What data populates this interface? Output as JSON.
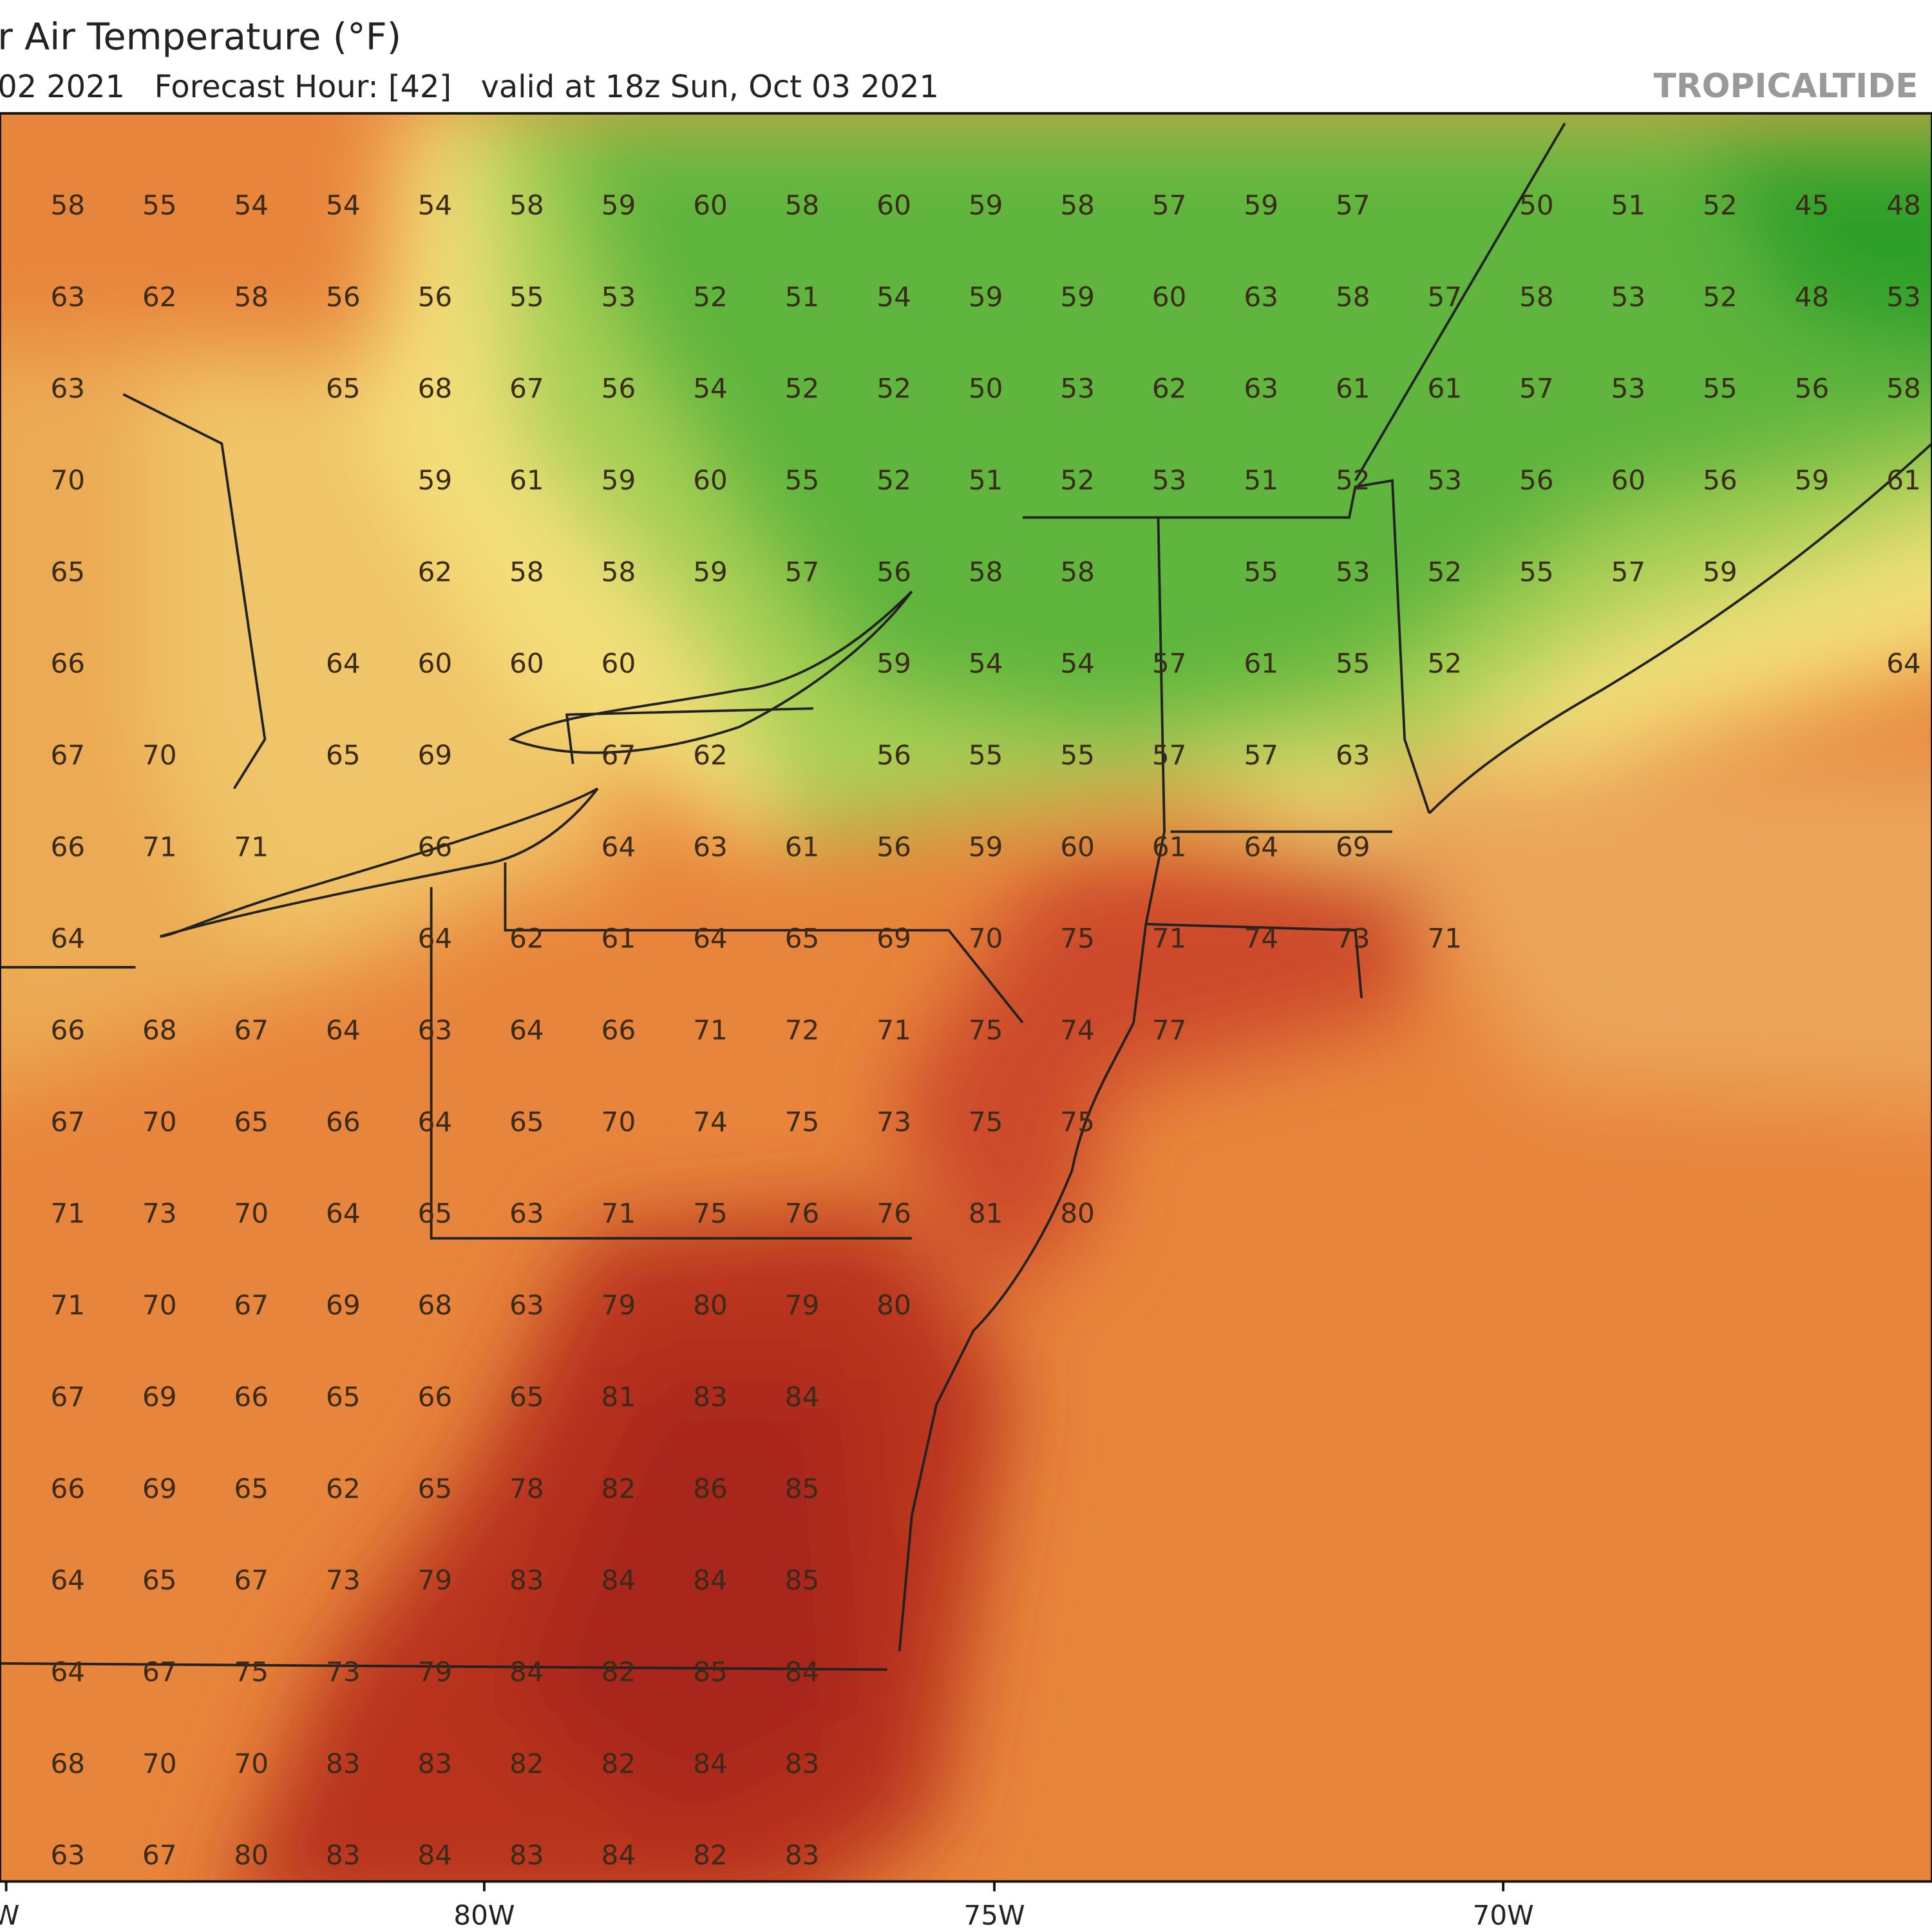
{
  "header": {
    "title": "r Air Temperature (°F)",
    "subtitle": "02 2021   Forecast Hour: [42]   valid at 18z Sun, Oct 03 2021",
    "brand": "TROPICALTIDE"
  },
  "axis": {
    "labels": [
      "W",
      "80W",
      "75W",
      "70W"
    ]
  },
  "grid": {
    "rows": [
      [
        58,
        55,
        54,
        54,
        54,
        58,
        59,
        60,
        58,
        60,
        59,
        58,
        57,
        59,
        57,
        null,
        50,
        51,
        52,
        45,
        48
      ],
      [
        63,
        62,
        58,
        56,
        56,
        55,
        53,
        52,
        51,
        54,
        59,
        59,
        60,
        63,
        58,
        57,
        58,
        53,
        52,
        48,
        53
      ],
      [
        63,
        null,
        null,
        65,
        68,
        67,
        56,
        54,
        52,
        52,
        50,
        53,
        62,
        63,
        61,
        61,
        57,
        53,
        55,
        56,
        58
      ],
      [
        70,
        null,
        null,
        null,
        59,
        61,
        59,
        60,
        55,
        52,
        51,
        52,
        53,
        51,
        52,
        53,
        56,
        60,
        56,
        59,
        61
      ],
      [
        65,
        null,
        null,
        null,
        62,
        58,
        58,
        59,
        57,
        56,
        58,
        58,
        null,
        55,
        53,
        52,
        55,
        57,
        59,
        null,
        null
      ],
      [
        66,
        null,
        null,
        64,
        60,
        60,
        60,
        null,
        null,
        59,
        54,
        54,
        57,
        61,
        55,
        52,
        null,
        null,
        null,
        null,
        64
      ],
      [
        67,
        70,
        null,
        65,
        69,
        null,
        67,
        62,
        null,
        56,
        55,
        55,
        57,
        57,
        63,
        null,
        null,
        null,
        null,
        null,
        null
      ],
      [
        66,
        71,
        71,
        null,
        66,
        null,
        64,
        63,
        61,
        56,
        59,
        60,
        61,
        64,
        69,
        null,
        null,
        null,
        null,
        null,
        null
      ],
      [
        64,
        null,
        null,
        null,
        64,
        62,
        61,
        64,
        65,
        69,
        70,
        75,
        71,
        74,
        73,
        71,
        null,
        null,
        null,
        null,
        null
      ],
      [
        66,
        68,
        67,
        64,
        63,
        64,
        66,
        71,
        72,
        71,
        75,
        74,
        77,
        null,
        null,
        null,
        null,
        null,
        null,
        null,
        null
      ],
      [
        67,
        70,
        65,
        66,
        64,
        65,
        70,
        74,
        75,
        73,
        75,
        75,
        null,
        null,
        null,
        null,
        null,
        null,
        null,
        null,
        null
      ],
      [
        71,
        73,
        70,
        64,
        65,
        63,
        71,
        75,
        76,
        76,
        81,
        80,
        null,
        null,
        null,
        null,
        null,
        null,
        null,
        null,
        null
      ],
      [
        71,
        70,
        67,
        69,
        68,
        63,
        79,
        80,
        79,
        80,
        null,
        null,
        null,
        null,
        null,
        null,
        null,
        null,
        null,
        null,
        null
      ],
      [
        67,
        69,
        66,
        65,
        66,
        65,
        81,
        83,
        84,
        null,
        null,
        null,
        null,
        null,
        null,
        null,
        null,
        null,
        null,
        null,
        null
      ],
      [
        66,
        69,
        65,
        62,
        65,
        78,
        82,
        86,
        85,
        null,
        null,
        null,
        null,
        null,
        null,
        null,
        null,
        null,
        null,
        null,
        null
      ],
      [
        64,
        65,
        67,
        73,
        79,
        83,
        84,
        84,
        85,
        null,
        null,
        null,
        null,
        null,
        null,
        null,
        null,
        null,
        null,
        null,
        null
      ],
      [
        64,
        67,
        75,
        73,
        79,
        84,
        82,
        85,
        84,
        null,
        null,
        null,
        null,
        null,
        null,
        null,
        null,
        null,
        null,
        null,
        null
      ],
      [
        68,
        70,
        70,
        83,
        83,
        82,
        82,
        84,
        83,
        null,
        null,
        null,
        null,
        null,
        null,
        null,
        null,
        null,
        null,
        null,
        null
      ],
      [
        63,
        67,
        80,
        83,
        84,
        83,
        84,
        82,
        83,
        null,
        null,
        null,
        null,
        null,
        null,
        null,
        null,
        null,
        null,
        null,
        null
      ]
    ]
  }
}
